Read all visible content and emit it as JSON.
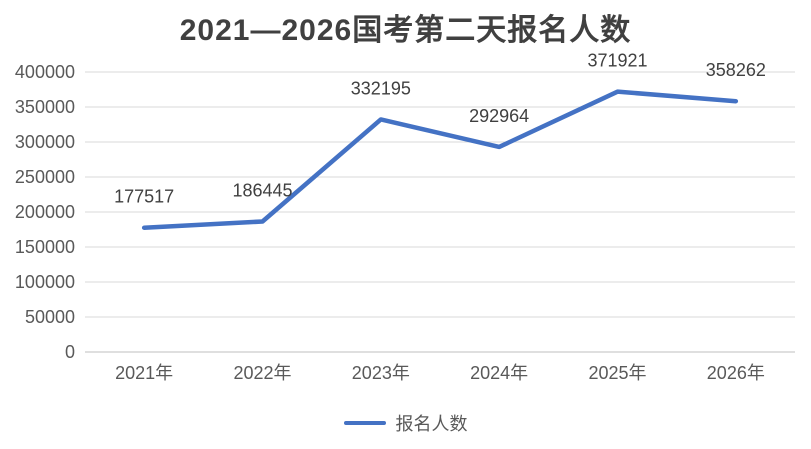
{
  "chart_data": {
    "type": "line",
    "title": "2021—2026国考第二天报名人数",
    "categories": [
      "2021年",
      "2022年",
      "2023年",
      "2024年",
      "2025年",
      "2026年"
    ],
    "series": [
      {
        "name": "报名人数",
        "values": [
          177517,
          186445,
          332195,
          292964,
          371921,
          358262
        ],
        "color": "#4472C4"
      }
    ],
    "data_labels": [
      "177517",
      "186445",
      "332195",
      "292964",
      "371921",
      "358262"
    ],
    "xlabel": "",
    "ylabel": "",
    "ylim": [
      0,
      400000
    ],
    "ytick_step": 50000,
    "ytick_labels": [
      "0",
      "50000",
      "100000",
      "150000",
      "200000",
      "250000",
      "300000",
      "350000",
      "400000"
    ],
    "grid": true,
    "legend_position": "bottom"
  },
  "legend": {
    "items": [
      {
        "label": "报名人数",
        "color": "#4472C4"
      }
    ]
  },
  "colors": {
    "line": "#4472C4",
    "gridline": "#D9D9D9",
    "axis_line": "#BFBFBF",
    "axis_label": "#595959",
    "data_label": "#404040",
    "title": "#404040"
  }
}
